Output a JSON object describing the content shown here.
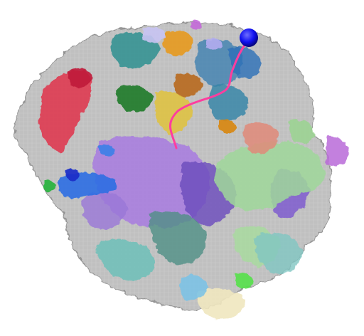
{
  "scene": {
    "background": "#ffffff",
    "subject": "molecular-surface-render",
    "palette": {
      "core_gray": "#b9b9b9",
      "core_gray_dark": "#8f8f8f",
      "purple": "#a77be0",
      "purple_dark": "#6b4bbd",
      "green": "#9fd79a",
      "teal": "#6fbfb8",
      "teal_dark": "#2f8f8f",
      "red": "#e0324a",
      "orange": "#e79a1f",
      "brown": "#b86a1d",
      "yellow": "#e1c23c",
      "dark_green": "#1f7a2a",
      "blue_chain": "#2c6fe3",
      "navy": "#1a2fc8",
      "salmon": "#e08a7a",
      "lavender": "#c8c3f2",
      "magenta": "#c36ad8",
      "cream": "#f0e7bf",
      "sky": "#78c2e6",
      "lime": "#55e04a",
      "pink_trace": "#ff3d9e",
      "sphere_blue": "#1010f0"
    }
  }
}
